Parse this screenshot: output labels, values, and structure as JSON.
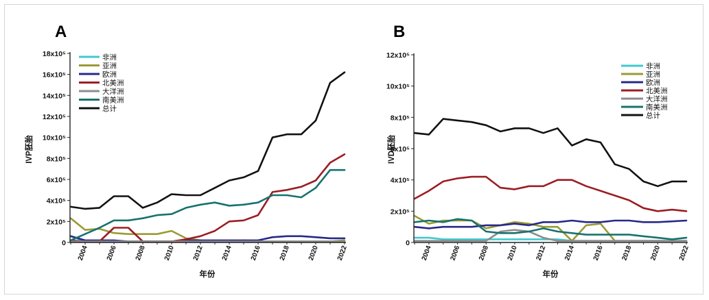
{
  "chart_data": [
    {
      "type": "line",
      "panel_label": "A",
      "ylabel": "IVP胚胎",
      "xlabel": "年份",
      "x": [
        2003,
        2004,
        2005,
        2006,
        2007,
        2008,
        2009,
        2010,
        2011,
        2012,
        2013,
        2014,
        2015,
        2016,
        2017,
        2018,
        2019,
        2020,
        2021,
        2022
      ],
      "xticks": [
        "2004",
        "2006",
        "2008",
        "2010",
        "2012",
        "2014",
        "2016",
        "2018",
        "2020",
        "2022"
      ],
      "yticks": [
        "0",
        "2x10⁵",
        "4x10⁵",
        "6x10⁵",
        "8x10⁵",
        "10x10⁵",
        "12x10⁵",
        "14x10⁵",
        "16x10⁵",
        "18x10⁵"
      ],
      "ylim": [
        0,
        18
      ],
      "y_unit_multiplier": 100000,
      "series": [
        {
          "name": "非洲",
          "color": "#3fc9cf",
          "values": [
            0.6,
            0.1,
            0.1,
            0.1,
            0.1,
            0.1,
            0.1,
            0.1,
            0.1,
            0.1,
            0.1,
            0.1,
            0.1,
            0.1,
            0.1,
            0.1,
            0.1,
            0.1,
            0.1,
            0.1
          ]
        },
        {
          "name": "亚洲",
          "color": "#9a9a36",
          "values": [
            2.3,
            1.2,
            1.3,
            0.9,
            0.8,
            0.8,
            0.8,
            1.1,
            0.4,
            0.2,
            0.1,
            0.1,
            0.2,
            0.1,
            0.1,
            0.1,
            0.1,
            0.1,
            0.1,
            0.2
          ]
        },
        {
          "name": "欧洲",
          "color": "#27288a",
          "values": [
            0.6,
            0.2,
            0.2,
            0.2,
            0.1,
            0.1,
            0.1,
            0.1,
            0.2,
            0.2,
            0.2,
            0.2,
            0.2,
            0.2,
            0.5,
            0.6,
            0.6,
            0.5,
            0.4,
            0.4
          ]
        },
        {
          "name": "北美洲",
          "color": "#9b1d23",
          "values": [
            0.2,
            0.1,
            0.1,
            1.4,
            1.4,
            0.1,
            0.1,
            0.1,
            0.3,
            0.6,
            1.1,
            2.0,
            2.1,
            2.6,
            4.8,
            5.0,
            5.3,
            5.9,
            7.6,
            8.4
          ]
        },
        {
          "name": "大洋洲",
          "color": "#8c8c8c",
          "values": [
            0.1,
            0.1,
            0.1,
            0.1,
            0.1,
            0.1,
            0.1,
            0.1,
            0.1,
            0.1,
            0.1,
            0.1,
            0.1,
            0.1,
            0.1,
            0.1,
            0.1,
            0.1,
            0.1,
            0.1
          ]
        },
        {
          "name": "南美洲",
          "color": "#16726e",
          "values": [
            0.2,
            0.8,
            1.4,
            2.1,
            2.1,
            2.3,
            2.6,
            2.7,
            3.3,
            3.6,
            3.8,
            3.5,
            3.6,
            3.8,
            4.5,
            4.5,
            4.3,
            5.2,
            6.9,
            6.9
          ]
        },
        {
          "name": "总计",
          "color": "#111111",
          "values": [
            3.4,
            3.2,
            3.3,
            4.4,
            4.4,
            3.3,
            3.8,
            4.6,
            4.5,
            4.5,
            5.2,
            5.9,
            6.2,
            6.8,
            10.0,
            10.3,
            10.3,
            11.6,
            15.2,
            16.2
          ]
        }
      ]
    },
    {
      "type": "line",
      "panel_label": "B",
      "ylabel": "IVD胚胎",
      "xlabel": "年份",
      "x": [
        2003,
        2004,
        2005,
        2006,
        2007,
        2008,
        2009,
        2010,
        2011,
        2012,
        2013,
        2014,
        2015,
        2016,
        2017,
        2018,
        2019,
        2020,
        2021,
        2022
      ],
      "xticks": [
        "2004",
        "2006",
        "2008",
        "2010",
        "2012",
        "2014",
        "2016",
        "2018",
        "2020",
        "2022"
      ],
      "yticks": [
        "0",
        "2x10⁵",
        "4x10⁵",
        "6x10⁵",
        "8x10⁵",
        "10x10⁵",
        "12x10⁵"
      ],
      "ylim": [
        0,
        12
      ],
      "y_unit_multiplier": 100000,
      "series": [
        {
          "name": "非洲",
          "color": "#3fc9cf",
          "values": [
            0.3,
            0.3,
            0.2,
            0.2,
            0.2,
            0.2,
            0.2,
            0.2,
            0.2,
            0.2,
            0.2,
            0.1,
            0.1,
            0.1,
            0.1,
            0.1,
            0.1,
            0.1,
            0.1,
            0.1
          ]
        },
        {
          "name": "亚洲",
          "color": "#9a9a36",
          "values": [
            1.7,
            1.2,
            1.4,
            1.4,
            1.4,
            0.9,
            1.1,
            1.3,
            1.2,
            1.0,
            1.0,
            0.1,
            1.1,
            1.2,
            0.1,
            0.1,
            0.1,
            0.1,
            0.1,
            0.1
          ]
        },
        {
          "name": "欧洲",
          "color": "#27288a",
          "values": [
            1.0,
            0.9,
            1.0,
            1.0,
            1.0,
            1.1,
            1.1,
            1.2,
            1.1,
            1.3,
            1.3,
            1.4,
            1.3,
            1.3,
            1.4,
            1.4,
            1.3,
            1.3,
            1.35,
            1.4
          ]
        },
        {
          "name": "北美洲",
          "color": "#9b1d23",
          "values": [
            2.8,
            3.3,
            3.9,
            4.1,
            4.2,
            4.2,
            3.5,
            3.4,
            3.6,
            3.6,
            4.0,
            4.0,
            3.6,
            3.3,
            3.0,
            2.7,
            2.2,
            2.0,
            2.1,
            2.0
          ]
        },
        {
          "name": "大洋洲",
          "color": "#8c8c8c",
          "values": [
            0.1,
            0.1,
            0.1,
            0.1,
            0.1,
            0.1,
            0.7,
            0.8,
            0.7,
            0.3,
            0.1,
            0.1,
            0.1,
            0.1,
            0.1,
            0.1,
            0.1,
            0.1,
            0.1,
            0.1
          ]
        },
        {
          "name": "南美洲",
          "color": "#16726e",
          "values": [
            1.3,
            1.4,
            1.3,
            1.5,
            1.4,
            0.7,
            0.6,
            0.6,
            0.7,
            0.9,
            0.7,
            0.6,
            0.5,
            0.5,
            0.5,
            0.5,
            0.4,
            0.3,
            0.2,
            0.3
          ]
        },
        {
          "name": "总计",
          "color": "#111111",
          "values": [
            7.0,
            6.9,
            7.9,
            7.8,
            7.7,
            7.5,
            7.1,
            7.3,
            7.3,
            7.0,
            7.3,
            6.2,
            6.6,
            6.4,
            5.0,
            4.7,
            3.9,
            3.6,
            3.9,
            3.9
          ]
        }
      ]
    }
  ]
}
